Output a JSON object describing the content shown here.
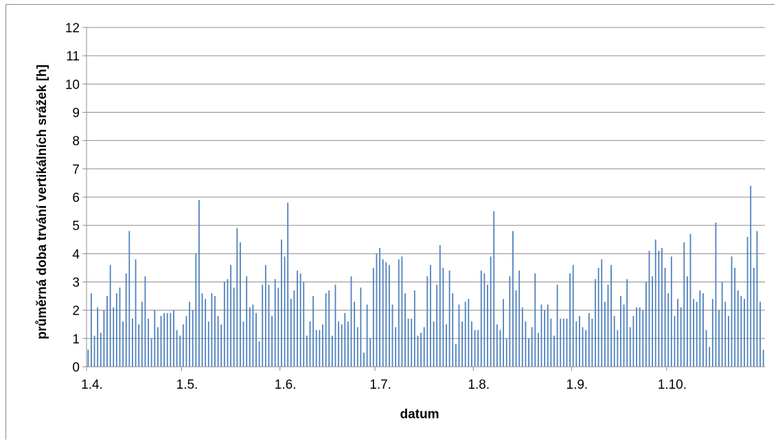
{
  "chart_data": {
    "type": "bar",
    "xlabel": "datum",
    "ylabel": "průměrná doba trvání vertikálních srážek [h]",
    "ylim": [
      0,
      12
    ],
    "yticks": [
      0,
      1,
      2,
      3,
      4,
      5,
      6,
      7,
      8,
      9,
      10,
      11,
      12
    ],
    "xticks": [
      {
        "label": "1.4.",
        "day_index": 0
      },
      {
        "label": "1.5.",
        "day_index": 30
      },
      {
        "label": "1.6.",
        "day_index": 61
      },
      {
        "label": "1.7.",
        "day_index": 91
      },
      {
        "label": "1.8.",
        "day_index": 122
      },
      {
        "label": "1.9.",
        "day_index": 153
      },
      {
        "label": "1.10.",
        "day_index": 183
      }
    ],
    "grid": true,
    "bar_color": "#4f81bd",
    "grid_color": "#8c8c8c",
    "values": [
      0.6,
      2.6,
      1.1,
      2.1,
      1.2,
      2.0,
      2.5,
      3.6,
      2.1,
      2.6,
      2.8,
      1.6,
      3.3,
      4.8,
      1.7,
      3.8,
      1.5,
      2.3,
      3.2,
      1.7,
      1.0,
      2.0,
      1.4,
      1.8,
      1.9,
      1.9,
      1.9,
      2.0,
      1.3,
      1.1,
      1.5,
      1.8,
      2.3,
      2.0,
      4.0,
      5.9,
      2.6,
      2.4,
      1.6,
      2.6,
      2.5,
      1.8,
      1.5,
      3.0,
      3.1,
      3.6,
      2.8,
      4.9,
      4.4,
      1.6,
      3.2,
      2.1,
      2.2,
      1.9,
      0.9,
      2.9,
      3.6,
      2.9,
      1.8,
      3.1,
      2.8,
      4.5,
      3.9,
      5.8,
      2.4,
      2.7,
      3.4,
      3.3,
      3.0,
      1.1,
      1.6,
      2.5,
      1.3,
      1.3,
      1.5,
      2.6,
      2.7,
      1.1,
      2.9,
      1.6,
      1.5,
      1.9,
      1.6,
      3.2,
      2.3,
      1.4,
      2.8,
      0.5,
      2.2,
      1.0,
      3.5,
      4.0,
      4.2,
      3.8,
      3.7,
      3.6,
      2.2,
      1.4,
      3.8,
      3.9,
      2.6,
      1.7,
      1.7,
      2.7,
      1.1,
      1.2,
      1.4,
      3.2,
      3.6,
      1.6,
      2.9,
      4.3,
      3.5,
      1.5,
      3.4,
      2.6,
      0.8,
      2.2,
      1.6,
      2.3,
      2.4,
      1.6,
      1.3,
      1.3,
      3.4,
      3.3,
      2.9,
      3.9,
      5.5,
      1.5,
      1.3,
      2.4,
      1.0,
      3.2,
      4.8,
      2.7,
      3.4,
      2.1,
      1.6,
      1.0,
      1.4,
      3.3,
      1.2,
      2.2,
      2.0,
      2.2,
      1.7,
      1.1,
      2.9,
      1.7,
      1.7,
      1.7,
      3.3,
      3.6,
      1.6,
      1.8,
      1.4,
      1.3,
      1.9,
      1.7,
      3.1,
      3.5,
      3.8,
      2.3,
      2.9,
      3.6,
      1.8,
      1.3,
      2.5,
      2.2,
      3.1,
      1.4,
      1.8,
      2.1,
      2.1,
      2.0,
      3.0,
      4.1,
      3.2,
      4.5,
      4.1,
      4.2,
      3.5,
      2.6,
      3.9,
      1.8,
      2.4,
      2.1,
      4.4,
      3.2,
      4.7,
      2.4,
      2.3,
      2.7,
      2.6,
      1.3,
      0.7,
      2.4,
      5.1,
      2.0,
      3.0,
      2.3,
      1.8,
      3.9,
      3.5,
      2.7,
      2.5,
      2.4,
      4.6,
      6.4,
      3.5,
      4.8,
      2.3,
      0.6
    ]
  }
}
